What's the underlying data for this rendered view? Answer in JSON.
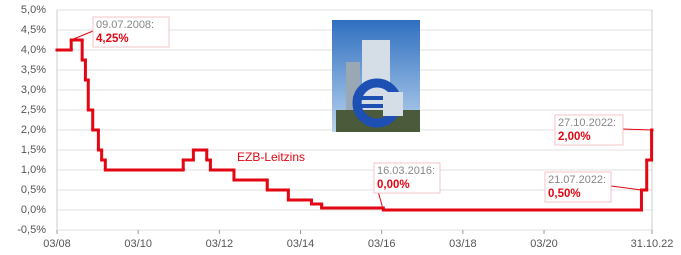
{
  "chart_data": {
    "type": "step-line",
    "series": [
      {
        "name": "EZB-Leitzins",
        "color": "#e30613",
        "x": [
          2008.17,
          2008.52,
          2008.79,
          2008.87,
          2008.94,
          2009.05,
          2009.19,
          2009.27,
          2009.36,
          2011.28,
          2011.53,
          2011.86,
          2011.95,
          2012.53,
          2013.35,
          2013.87,
          2014.44,
          2014.69,
          2016.21,
          2022.57,
          2022.7,
          2022.82
        ],
        "values": [
          4.0,
          4.25,
          3.75,
          3.25,
          2.5,
          2.0,
          1.5,
          1.25,
          1.0,
          1.25,
          1.5,
          1.25,
          1.0,
          0.75,
          0.5,
          0.25,
          0.15,
          0.05,
          0.0,
          0.5,
          1.25,
          2.0
        ]
      }
    ],
    "xlim": [
      2008.17,
      2022.83
    ],
    "xticks": [
      {
        "value": 2008.17,
        "label": "03/08"
      },
      {
        "value": 2010.17,
        "label": "03/10"
      },
      {
        "value": 2012.17,
        "label": "03/12"
      },
      {
        "value": 2014.17,
        "label": "03/14"
      },
      {
        "value": 2016.17,
        "label": "03/16"
      },
      {
        "value": 2018.17,
        "label": "03/18"
      },
      {
        "value": 2020.17,
        "label": "03/20"
      },
      {
        "value": 2022.83,
        "label": "31.10.22"
      }
    ],
    "ylim": [
      -0.5,
      5.0
    ],
    "yticks": [
      {
        "value": -0.5,
        "label": "-0,5%"
      },
      {
        "value": 0,
        "label": "0,0%"
      },
      {
        "value": 0.5,
        "label": "0,5%"
      },
      {
        "value": 1.0,
        "label": "1,0%"
      },
      {
        "value": 1.5,
        "label": "1,5%"
      },
      {
        "value": 2.0,
        "label": "2,0%"
      },
      {
        "value": 2.5,
        "label": "2,5%"
      },
      {
        "value": 3.0,
        "label": "3,0%"
      },
      {
        "value": 3.5,
        "label": "3,5%"
      },
      {
        "value": 4.0,
        "label": "4,0%"
      },
      {
        "value": 4.5,
        "label": "4,5%"
      },
      {
        "value": 5.0,
        "label": "5,0%"
      }
    ],
    "grid": true,
    "annotations": [
      {
        "date": "09.07.2008:",
        "value": "4,25%"
      },
      {
        "date": "16.03.2016:",
        "value": "0,00%"
      },
      {
        "date": "21.07.2022:",
        "value": "0,50%"
      },
      {
        "date": "27.10.2022:",
        "value": "2,00%"
      }
    ]
  }
}
